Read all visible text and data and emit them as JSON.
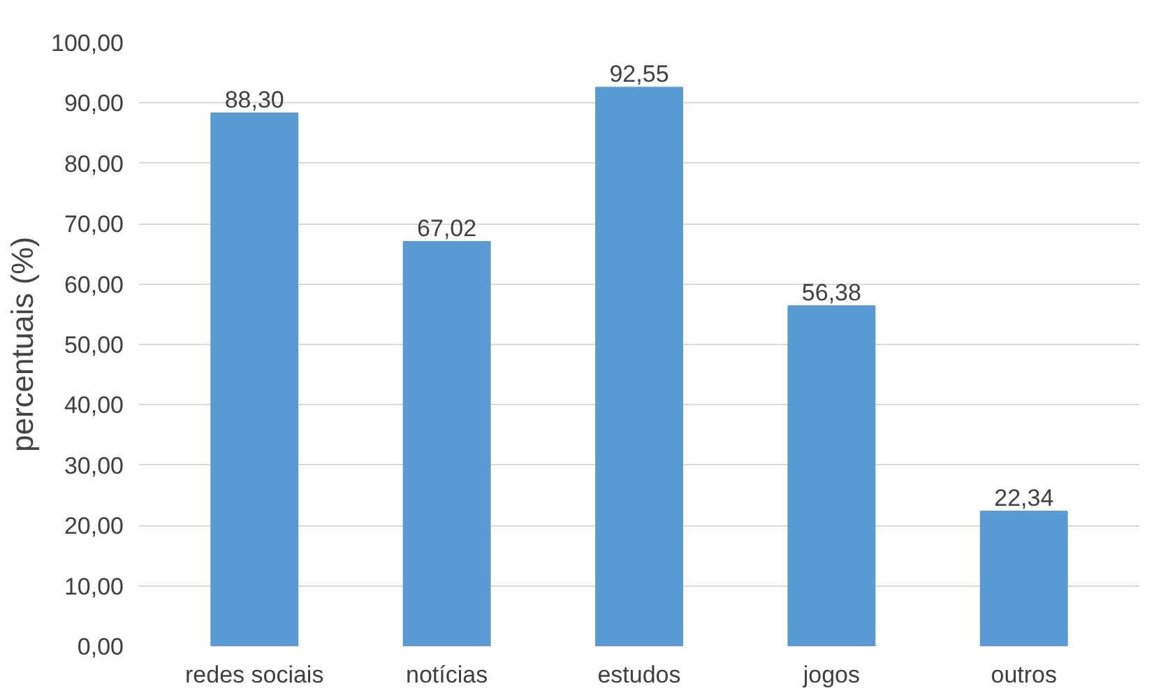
{
  "chart_data": {
    "type": "bar",
    "ylabel": "percentuais (%)",
    "categories": [
      "redes sociais",
      "notícias",
      "estudos",
      "jogos",
      "outros"
    ],
    "values": [
      88.3,
      67.02,
      92.55,
      56.38,
      22.34
    ],
    "value_labels": [
      "88,30",
      "67,02",
      "92,55",
      "56,38",
      "22,34"
    ],
    "color": "#5b9bd5",
    "ylim": [
      0,
      100
    ],
    "yticks": [
      {
        "value": 0,
        "label": "0,00"
      },
      {
        "value": 10,
        "label": "10,00"
      },
      {
        "value": 20,
        "label": "20,00"
      },
      {
        "value": 30,
        "label": "30,00"
      },
      {
        "value": 40,
        "label": "40,00"
      },
      {
        "value": 50,
        "label": "50,00"
      },
      {
        "value": 60,
        "label": "60,00"
      },
      {
        "value": 70,
        "label": "70,00"
      },
      {
        "value": 80,
        "label": "80,00"
      },
      {
        "value": 90,
        "label": "90,00"
      },
      {
        "value": 100,
        "label": "100,00"
      }
    ],
    "grid": "y"
  }
}
